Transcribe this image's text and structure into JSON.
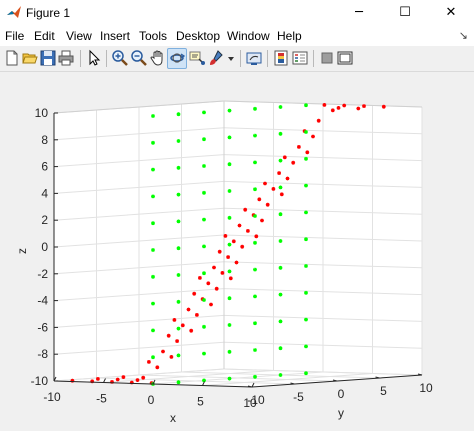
{
  "window": {
    "title": "Figure 1",
    "controls": {
      "minimize": "─",
      "maximize": "☐",
      "close": "✕"
    }
  },
  "menu": {
    "items": [
      "File",
      "Edit",
      "View",
      "Insert",
      "Tools",
      "Desktop",
      "Window",
      "Help"
    ],
    "overflow_arrow": "↘"
  },
  "toolbar": {
    "buttons": [
      "new-figure",
      "open-file",
      "save-figure",
      "print-figure",
      "edit-plot",
      "zoom-in",
      "zoom-out",
      "pan",
      "rotate-3d",
      "data-cursor",
      "brush",
      "link-plot",
      "insert-colorbar",
      "insert-legend",
      "hide-plot-tools",
      "show-plot-tools"
    ]
  },
  "colors": {
    "series_red": "#ff0000",
    "series_green": "#00ff00",
    "axis_box": "#ffffff",
    "grid": "#e2e2e2"
  },
  "chart_data": {
    "type": "scatter",
    "projection": "3d",
    "xlabel": "x",
    "ylabel": "y",
    "zlabel": "z",
    "xlim": [
      -10,
      10
    ],
    "ylim": [
      -10,
      10
    ],
    "zlim": [
      -10,
      10
    ],
    "x_ticks": [
      "-10",
      "-5",
      "0",
      "5",
      "10"
    ],
    "y_ticks": [
      "-10",
      "-5",
      "0",
      "5",
      "10"
    ],
    "z_ticks": [
      "-10",
      "-8",
      "-6",
      "-4",
      "-2",
      "0",
      "2",
      "4",
      "6",
      "8",
      "10"
    ],
    "grid": true,
    "series": [
      {
        "color": "#ff0000",
        "marker": "*",
        "description_shape": "inclined plane z = x + y",
        "x": [
          -9,
          -9,
          -9,
          -9,
          -9,
          -9,
          -9,
          -7,
          -7,
          -7,
          -7,
          -7,
          -7,
          -7,
          -5,
          -5,
          -5,
          -5,
          -5,
          -5,
          -5,
          -3,
          -3,
          -3,
          -3,
          -3,
          -3,
          -3,
          -1,
          -1,
          -1,
          -1,
          -1,
          -1,
          -1,
          1,
          1,
          1,
          1,
          1,
          1,
          1,
          3,
          3,
          3,
          3,
          3,
          3,
          3,
          5,
          5,
          5,
          5,
          5,
          5,
          5,
          7,
          7,
          7,
          7,
          7,
          7,
          7
        ],
        "y": [
          -9,
          -6,
          -3,
          0,
          3,
          6,
          9,
          -9,
          -6,
          -3,
          0,
          3,
          6,
          9,
          -9,
          -6,
          -3,
          0,
          3,
          6,
          9,
          -9,
          -6,
          -3,
          0,
          3,
          6,
          9,
          -9,
          -6,
          -3,
          0,
          3,
          6,
          9,
          -9,
          -6,
          -3,
          0,
          3,
          6,
          9,
          -9,
          -6,
          -3,
          0,
          3,
          6,
          9,
          -9,
          -6,
          -3,
          0,
          3,
          6,
          9,
          -9,
          -6,
          -3,
          0,
          3,
          6,
          9
        ],
        "z": [
          -10,
          -10,
          -10,
          -9,
          -6,
          -3,
          0,
          -10,
          -10,
          -10,
          -7,
          -4,
          -1,
          2,
          -10,
          -10,
          -8,
          -5,
          -2,
          1,
          4,
          -10,
          -9,
          -6,
          -3,
          0,
          3,
          6,
          -10,
          -7,
          -4,
          -1,
          2,
          5,
          8,
          -8,
          -5,
          -2,
          1,
          4,
          7,
          10,
          -6,
          -3,
          0,
          3,
          6,
          9,
          10,
          -4,
          -1,
          2,
          5,
          8,
          10,
          10,
          -2,
          1,
          4,
          7,
          10,
          10,
          10
        ]
      },
      {
        "color": "#00ff00",
        "marker": "*",
        "description_shape": "vertical plane x = 0",
        "x": [
          0,
          0,
          0,
          0,
          0,
          0,
          0,
          0,
          0,
          0,
          0,
          0,
          0,
          0,
          0,
          0,
          0,
          0,
          0,
          0,
          0,
          0,
          0,
          0,
          0,
          0,
          0,
          0,
          0,
          0,
          0,
          0,
          0,
          0,
          0,
          0,
          0,
          0,
          0,
          0,
          0,
          0,
          0,
          0,
          0,
          0,
          0,
          0,
          0,
          0,
          0,
          0,
          0,
          0,
          0,
          0,
          0,
          0,
          0,
          0,
          0,
          0,
          0,
          0,
          0,
          0,
          0,
          0,
          0,
          0,
          0,
          0,
          0,
          0,
          0,
          0,
          0
        ],
        "y": [
          -10,
          -10,
          -10,
          -10,
          -10,
          -10,
          -10,
          -10,
          -10,
          -10,
          -10,
          -7,
          -7,
          -7,
          -7,
          -7,
          -7,
          -7,
          -7,
          -7,
          -7,
          -7,
          -4,
          -4,
          -4,
          -4,
          -4,
          -4,
          -4,
          -4,
          -4,
          -4,
          -4,
          -1,
          -1,
          -1,
          -1,
          -1,
          -1,
          -1,
          -1,
          -1,
          -1,
          -1,
          2,
          2,
          2,
          2,
          2,
          2,
          2,
          2,
          2,
          2,
          2,
          5,
          5,
          5,
          5,
          5,
          5,
          5,
          5,
          5,
          5,
          5,
          8,
          8,
          8,
          8,
          8,
          8,
          8,
          8,
          8,
          8,
          8
        ],
        "z": [
          -10,
          -8,
          -6,
          -4,
          -2,
          0,
          2,
          4,
          6,
          8,
          10,
          -10,
          -8,
          -6,
          -4,
          -2,
          0,
          2,
          4,
          6,
          8,
          10,
          -10,
          -8,
          -6,
          -4,
          -2,
          0,
          2,
          4,
          6,
          8,
          10,
          -10,
          -8,
          -6,
          -4,
          -2,
          0,
          2,
          4,
          6,
          8,
          10,
          -10,
          -8,
          -6,
          -4,
          -2,
          0,
          2,
          4,
          6,
          8,
          10,
          -10,
          -8,
          -6,
          -4,
          -2,
          0,
          2,
          4,
          6,
          8,
          10,
          -10,
          -8,
          -6,
          -4,
          -2,
          0,
          2,
          4,
          6,
          8,
          10
        ]
      }
    ]
  }
}
